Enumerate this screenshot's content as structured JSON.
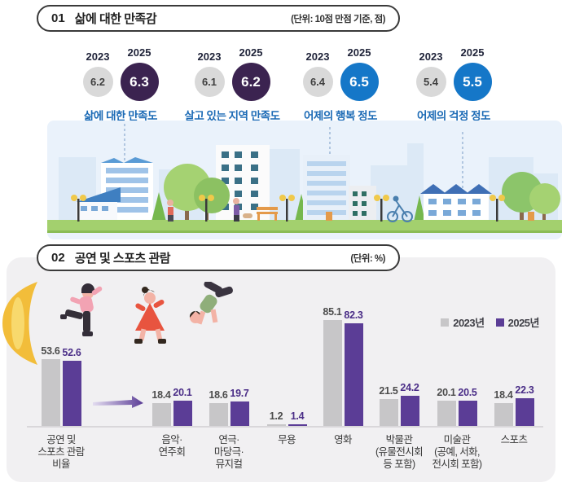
{
  "section1": {
    "number": "01",
    "title": "삶에 대한 만족감",
    "unit": "(단위: 10점 만점 기준, 점)",
    "metrics": [
      {
        "year_old": "2023",
        "year_new": "2025",
        "old": "6.2",
        "new": "6.3",
        "label": "삶에 대한 만족도",
        "accent_color": "#3b2350"
      },
      {
        "year_old": "2023",
        "year_new": "2025",
        "old": "6.1",
        "new": "6.2",
        "label": "살고 있는 지역 만족도",
        "accent_color": "#3b2350"
      },
      {
        "year_old": "2023",
        "year_new": "2025",
        "old": "6.4",
        "new": "6.5",
        "label": "어제의 행복 정도",
        "accent_color": "#1577c8"
      },
      {
        "year_old": "2023",
        "year_new": "2025",
        "old": "5.4",
        "new": "5.5",
        "label": "어제의 걱정 정도",
        "accent_color": "#1577c8"
      }
    ]
  },
  "section2": {
    "number": "02",
    "title": "공연 및 스포츠 관람",
    "unit": "(단위: %)"
  },
  "chart_data": {
    "type": "bar",
    "categories": [
      "공연 및\n스포츠 관람\n비율",
      "음악·\n연주회",
      "연극·\n마당극·\n뮤지컬",
      "무용",
      "영화",
      "박물관\n(유물전시회\n등 포함)",
      "미술관\n(공예, 서화,\n전시회 포함)",
      "스포츠"
    ],
    "series": [
      {
        "name": "2023년",
        "color": "#c7c6c8",
        "values": [
          53.6,
          18.4,
          18.6,
          1.2,
          85.1,
          21.5,
          20.1,
          18.4
        ]
      },
      {
        "name": "2025년",
        "color": "#5b3d96",
        "values": [
          52.6,
          20.1,
          19.7,
          1.4,
          82.3,
          24.2,
          20.5,
          22.3
        ]
      }
    ],
    "unit": "%",
    "ylim": [
      0,
      100
    ],
    "grid": false,
    "legend_position": "top-right"
  }
}
